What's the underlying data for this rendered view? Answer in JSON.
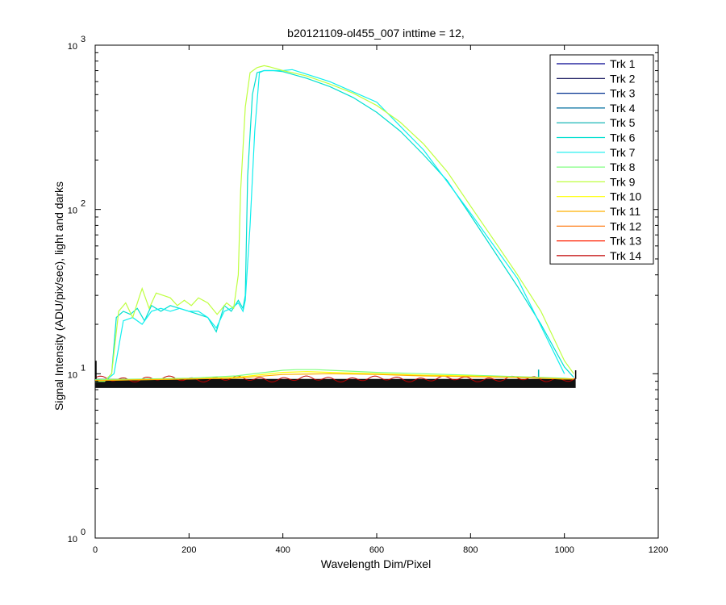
{
  "chart_data": {
    "type": "line",
    "title": "b20121109-ol455_007 inttime = 12,",
    "xlabel": "Wavelength Dim/Pixel",
    "ylabel": "Signal Intensity (ADU/pix/sec), light and darks",
    "xlim": [
      0,
      1200
    ],
    "ylim": [
      1,
      1000
    ],
    "yscale": "log",
    "grid": false,
    "legend_position": "top-right",
    "x_ticks": [
      "0",
      "200",
      "400",
      "600",
      "800",
      "1000",
      "1200"
    ],
    "y_ticks": [
      {
        "base": "10",
        "exp": "0"
      },
      {
        "base": "10",
        "exp": "1"
      },
      {
        "base": "10",
        "exp": "2"
      },
      {
        "base": "10",
        "exp": "3"
      }
    ],
    "series": [
      {
        "name": "Trk 1",
        "color": "#00008f",
        "values": []
      },
      {
        "name": "Trk 2",
        "color": "#00004f",
        "values": []
      },
      {
        "name": "Trk 3",
        "color": "#00308f",
        "values": []
      },
      {
        "name": "Trk 4",
        "color": "#006f9f",
        "values": []
      },
      {
        "name": "Trk 5",
        "color": "#00afaf",
        "values": []
      },
      {
        "name": "Trk 6",
        "color": "#00dfd0",
        "x": [
          0,
          20,
          35,
          45,
          60,
          75,
          90,
          105,
          120,
          140,
          160,
          180,
          200,
          220,
          240,
          258,
          275,
          290,
          305,
          315,
          320,
          325,
          335,
          345,
          360,
          380,
          400,
          450,
          500,
          550,
          600,
          650,
          700,
          750,
          800,
          850,
          900,
          950,
          1000,
          1020
        ],
        "values": [
          9,
          9,
          10,
          22,
          24,
          23,
          25,
          21,
          26,
          24,
          26,
          25,
          24,
          23,
          22,
          18,
          26,
          24,
          28,
          25,
          30,
          160,
          500,
          680,
          700,
          700,
          690,
          630,
          560,
          480,
          390,
          300,
          215,
          150,
          92,
          56,
          34,
          20,
          11,
          9.5
        ]
      },
      {
        "name": "Trk 7",
        "color": "#10efef",
        "x": [
          0,
          20,
          40,
          60,
          80,
          100,
          120,
          140,
          160,
          180,
          200,
          220,
          240,
          258,
          275,
          290,
          305,
          315,
          320,
          330,
          340,
          350,
          360,
          400,
          420,
          500,
          600,
          700,
          800,
          900,
          1000
        ],
        "values": [
          9,
          9,
          10,
          21,
          22,
          20,
          24,
          25,
          24,
          25,
          24,
          24,
          22,
          19,
          24,
          25,
          27,
          24,
          28,
          80,
          300,
          680,
          700,
          700,
          710,
          600,
          450,
          230,
          95,
          38,
          10
        ]
      },
      {
        "name": "Trk 8",
        "color": "#80ff80",
        "x": [
          0,
          100,
          200,
          300,
          350,
          400,
          430,
          470,
          500,
          600,
          700,
          800,
          900,
          1000,
          1020
        ],
        "values": [
          9.2,
          9.3,
          9.4,
          9.7,
          10.1,
          10.5,
          10.6,
          10.6,
          10.5,
          10.2,
          10,
          9.8,
          9.6,
          9.4,
          9.3
        ]
      },
      {
        "name": "Trk 9",
        "color": "#bfff40",
        "x": [
          0,
          20,
          35,
          50,
          65,
          80,
          95,
          100,
          115,
          130,
          145,
          160,
          175,
          190,
          205,
          220,
          240,
          260,
          280,
          295,
          305,
          310,
          320,
          330,
          345,
          360,
          370,
          400,
          450,
          500,
          550,
          600,
          650,
          700,
          750,
          800,
          850,
          900,
          950,
          1000,
          1020
        ],
        "values": [
          9,
          9,
          10,
          24,
          27,
          22,
          30,
          33,
          25,
          31,
          30,
          29,
          26,
          28,
          26,
          29,
          27,
          23,
          27,
          25,
          40,
          130,
          420,
          680,
          730,
          750,
          740,
          700,
          650,
          580,
          510,
          430,
          340,
          250,
          170,
          105,
          65,
          40,
          24,
          12,
          10
        ]
      },
      {
        "name": "Trk 10",
        "color": "#ffff00",
        "x": [
          0,
          100,
          200,
          300,
          400,
          450,
          500,
          600,
          700,
          800,
          900,
          1000,
          1020
        ],
        "values": [
          9.1,
          9.2,
          9.3,
          9.5,
          10.2,
          10.3,
          10.2,
          10,
          9.8,
          9.7,
          9.5,
          9.3,
          9.3
        ]
      },
      {
        "name": "Trk 11",
        "color": "#ffb000",
        "x": [
          0,
          100,
          200,
          300,
          400,
          500,
          600,
          700,
          800,
          900,
          1000,
          1020
        ],
        "values": [
          9.1,
          9.2,
          9.3,
          9.4,
          9.9,
          10,
          9.9,
          9.7,
          9.6,
          9.5,
          9.3,
          9.3
        ]
      },
      {
        "name": "Trk 12",
        "color": "#ff7000",
        "values": []
      },
      {
        "name": "Trk 13",
        "color": "#ff2000",
        "values": []
      },
      {
        "name": "Trk 14",
        "color": "#c00000",
        "values": []
      }
    ],
    "dark_band": {
      "x_range": [
        0,
        1024
      ],
      "y_range": [
        8.2,
        9.3
      ],
      "baseline_spike": {
        "x": 0,
        "y": 12
      },
      "end_spike": {
        "x": 1024,
        "y": 10.5
      },
      "small_spike": {
        "x": 945,
        "y": 10.6
      }
    }
  }
}
